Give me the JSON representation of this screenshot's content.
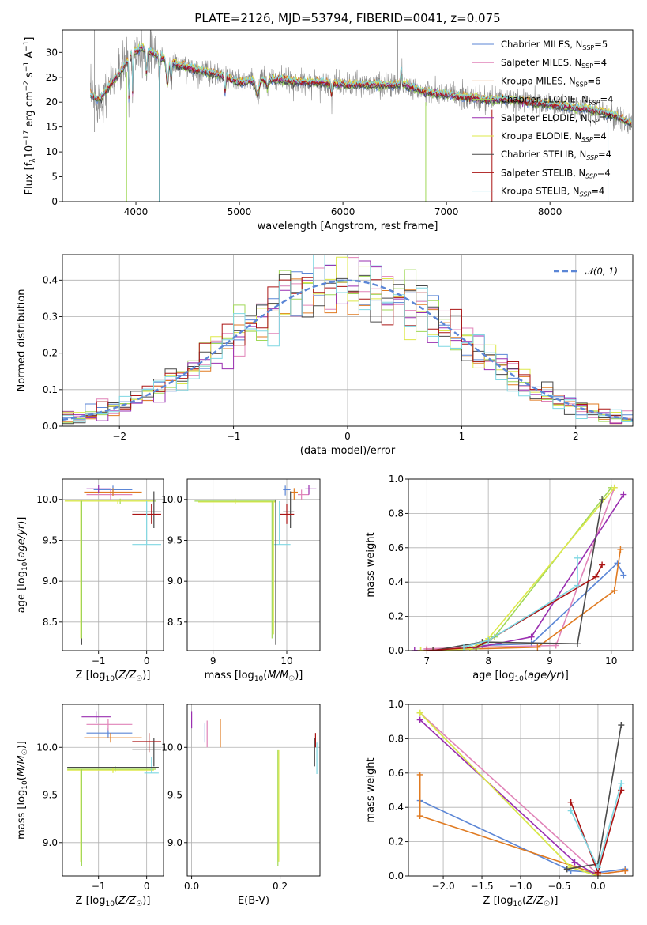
{
  "colors": {
    "Chabrier MILES": "#5b86d6",
    "Salpeter MILES": "#e083b8",
    "Kroupa MILES": "#e07b22",
    "Chabrier ELODIE": "#a0d858",
    "Salpeter ELODIE": "#9a2fb0",
    "Kroupa ELODIE": "#dde84a",
    "Chabrier STELIB": "#4a4a4a",
    "Salpeter STELIB": "#aa1414",
    "Kroupa STELIB": "#7fd7e2",
    "data": "#8a8a8a",
    "gauss": "#5b86d6"
  },
  "chart_data": [
    {
      "id": "spectrum",
      "type": "line",
      "title": "PLATE=2126, MJD=53794, FIBERID=0041, z=0.075",
      "xlabel": "wavelength [Angstrom, rest frame]",
      "ylabel": "Flux [f_λ10^-17 erg cm^-2 s^-1 A^-1]",
      "xlim": [
        3290,
        8800
      ],
      "ylim": [
        0,
        34.5
      ],
      "xticks": [
        4000,
        5000,
        6000,
        7000,
        8000
      ],
      "yticks": [
        0,
        5,
        10,
        15,
        20,
        25,
        30
      ],
      "grid": false,
      "legend_position": "top-right",
      "legend": [
        {
          "name": "Chabrier MILES",
          "nssp": "5"
        },
        {
          "name": "Salpeter MILES",
          "nssp": "4"
        },
        {
          "name": "Kroupa MILES",
          "nssp": "6"
        },
        {
          "name": "Chabrier ELODIE",
          "nssp": "4"
        },
        {
          "name": "Salpeter ELODIE",
          "nssp": "4"
        },
        {
          "name": "Kroupa ELODIE",
          "nssp": "4"
        },
        {
          "name": "Chabrier STELIB",
          "nssp": "4"
        },
        {
          "name": "Salpeter STELIB",
          "nssp": "4"
        },
        {
          "name": "Kroupa STELIB",
          "nssp": "4"
        }
      ],
      "continuum": {
        "x": [
          3560,
          3650,
          3750,
          3850,
          3950,
          4050,
          4150,
          4250,
          4400,
          4600,
          4800,
          5000,
          5200,
          5400,
          5600,
          5800,
          6000,
          6200,
          6400,
          6600,
          6800,
          7000,
          7200,
          7400,
          7600,
          7800,
          8000,
          8200,
          8400,
          8600,
          8800
        ],
        "y": [
          21.5,
          20.5,
          23.5,
          26,
          29.5,
          31,
          30,
          29,
          27.5,
          26.5,
          25.5,
          24,
          24.5,
          24.5,
          24,
          24,
          23.5,
          23.5,
          23.5,
          23.5,
          22,
          21.5,
          21,
          20.5,
          20.5,
          20,
          19.5,
          19,
          18.5,
          17.5,
          15.5
        ]
      }
    },
    {
      "id": "residuals",
      "type": "line",
      "xlabel": "(data-model)/error",
      "ylabel": "Normed distribution",
      "xlim": [
        -2.5,
        2.5
      ],
      "ylim": [
        0,
        0.47
      ],
      "xticks": [
        -2,
        -1,
        0,
        1,
        2
      ],
      "yticks": [
        0.0,
        0.1,
        0.2,
        0.3,
        0.4
      ],
      "grid": true,
      "legend_position": "top-right",
      "legend": [
        {
          "name": "𝒩(0, 1)"
        }
      ],
      "bins": 50,
      "bin_width": 0.1
    },
    {
      "id": "age_vs_Z",
      "type": "scatter",
      "xlabel": "Z [log10(Z/Z☉)]",
      "ylabel": "age  [log10(age/yr)]",
      "xlim": [
        -1.75,
        0.35
      ],
      "ylim": [
        8.15,
        10.25
      ],
      "xticks": [
        -1,
        0
      ],
      "yticks": [
        8.5,
        9.0,
        9.5,
        10.0
      ],
      "grid": true,
      "points": [
        {
          "s": "Chabrier MILES",
          "x": -0.7,
          "xe": [
            -1.1,
            -0.3
          ],
          "y": 10.12,
          "ye": [
            10.05,
            10.17
          ]
        },
        {
          "s": "Salpeter MILES",
          "x": -0.75,
          "xe": [
            -1.25,
            -0.3
          ],
          "y": 10.06,
          "ye": [
            10.0,
            10.12
          ]
        },
        {
          "s": "Kroupa MILES",
          "x": -0.7,
          "xe": [
            -1.3,
            -0.1
          ],
          "y": 10.09,
          "ye": [
            10.04,
            10.14
          ]
        },
        {
          "s": "Chabrier ELODIE",
          "x": -0.55,
          "xe": [
            -1.7,
            0.2
          ],
          "y": 9.98,
          "ye": [
            9.95,
            10.01
          ]
        },
        {
          "s": "Salpeter ELODIE",
          "x": -1.0,
          "xe": [
            -1.25,
            -0.75
          ],
          "y": 10.13,
          "ye": [
            10.08,
            10.18
          ]
        },
        {
          "s": "Kroupa ELODIE",
          "x": -0.6,
          "xe": [
            -1.7,
            0.15
          ],
          "y": 9.98,
          "ye": [
            9.95,
            10.0
          ]
        },
        {
          "s": "Chabrier STELIB",
          "x": 0.15,
          "xe": [
            -0.3,
            0.3
          ],
          "y": 9.85,
          "ye": [
            9.65,
            10.1
          ]
        },
        {
          "s": "Salpeter STELIB",
          "x": 0.1,
          "xe": [
            -0.3,
            0.3
          ],
          "y": 9.82,
          "ye": [
            9.7,
            9.95
          ]
        },
        {
          "s": "Kroupa STELIB",
          "x": 0.0,
          "xe": [
            -0.3,
            0.3
          ],
          "y": 9.45,
          "ye": [
            9.45,
            9.98
          ]
        },
        {
          "s": "Chabrier STELIB",
          "x": -1.35,
          "xe": [
            -1.35,
            -1.35
          ],
          "y": 9.0,
          "ye": [
            8.22,
            9.98
          ]
        },
        {
          "s": "Chabrier ELODIE",
          "x": -1.35,
          "xe": [
            -1.35,
            -1.35
          ],
          "y": 9.0,
          "ye": [
            8.3,
            9.98
          ]
        },
        {
          "s": "Kroupa ELODIE",
          "x": -1.37,
          "xe": [
            -1.37,
            -1.37
          ],
          "y": 9.0,
          "ye": [
            8.3,
            9.98
          ]
        }
      ]
    },
    {
      "id": "age_vs_mass",
      "type": "scatter",
      "xlabel": "mass [log10(M/M☉)]",
      "ylabel": "",
      "xlim": [
        8.65,
        10.45
      ],
      "ylim": [
        8.15,
        10.25
      ],
      "xticks": [
        9,
        10
      ],
      "yticks": [
        8.5,
        9.0,
        9.5,
        10.0
      ],
      "grid": true,
      "points": [
        {
          "s": "Chabrier MILES",
          "x": 9.98,
          "xe": [
            9.95,
            10.05
          ],
          "y": 10.12,
          "ye": [
            10.05,
            10.17
          ]
        },
        {
          "s": "Salpeter MILES",
          "x": 10.2,
          "xe": [
            10.15,
            10.3
          ],
          "y": 10.06,
          "ye": [
            10.0,
            10.12
          ]
        },
        {
          "s": "Kroupa MILES",
          "x": 10.1,
          "xe": [
            10.05,
            10.15
          ],
          "y": 10.09,
          "ye": [
            10.0,
            10.14
          ]
        },
        {
          "s": "Chabrier ELODIE",
          "x": 9.3,
          "xe": [
            8.75,
            9.85
          ],
          "y": 9.98,
          "ye": [
            9.95,
            10.01
          ]
        },
        {
          "s": "Salpeter ELODIE",
          "x": 10.3,
          "xe": [
            10.25,
            10.4
          ],
          "y": 10.13,
          "ye": [
            10.06,
            10.18
          ]
        },
        {
          "s": "Kroupa ELODIE",
          "x": 9.3,
          "xe": [
            8.8,
            9.85
          ],
          "y": 9.97,
          "ye": [
            9.94,
            10.0
          ]
        },
        {
          "s": "Chabrier STELIB",
          "x": 10.05,
          "xe": [
            9.95,
            10.1
          ],
          "y": 9.85,
          "ye": [
            9.65,
            10.1
          ]
        },
        {
          "s": "Salpeter STELIB",
          "x": 10.0,
          "xe": [
            9.9,
            10.1
          ],
          "y": 9.82,
          "ye": [
            9.7,
            9.95
          ]
        },
        {
          "s": "Kroupa STELIB",
          "x": 9.9,
          "xe": [
            9.8,
            10.05
          ],
          "y": 9.45,
          "ye": [
            9.45,
            9.98
          ]
        },
        {
          "s": "Chabrier STELIB",
          "x": 9.85,
          "xe": [
            9.85,
            9.85
          ],
          "y": 9.1,
          "ye": [
            8.22,
            10.0
          ]
        },
        {
          "s": "Chabrier ELODIE",
          "x": 9.8,
          "xe": [
            9.8,
            9.8
          ],
          "y": 9.1,
          "ye": [
            8.3,
            9.98
          ]
        },
        {
          "s": "Kroupa ELODIE",
          "x": 9.82,
          "xe": [
            9.82,
            9.82
          ],
          "y": 9.1,
          "ye": [
            8.35,
            9.98
          ]
        }
      ]
    },
    {
      "id": "weight_vs_age",
      "type": "line",
      "xlabel": "age  [log10(age/yr)]",
      "ylabel": "mass weight",
      "xlim": [
        6.7,
        10.35
      ],
      "ylim": [
        0,
        1.0
      ],
      "xticks": [
        7,
        8,
        9,
        10
      ],
      "yticks": [
        0.0,
        0.2,
        0.4,
        0.6,
        0.8,
        1.0
      ],
      "grid": true,
      "series": [
        {
          "name": "Chabrier MILES",
          "x": [
            7.5,
            7.9,
            8.7,
            10.1,
            10.2
          ],
          "y": [
            0.01,
            0.03,
            0.04,
            0.51,
            0.44
          ]
        },
        {
          "name": "Salpeter MILES",
          "x": [
            7.0,
            7.8,
            9.1,
            10.05
          ],
          "y": [
            0.01,
            0.02,
            0.03,
            0.95
          ]
        },
        {
          "name": "Kroupa MILES",
          "x": [
            7.1,
            7.8,
            8.8,
            10.05,
            10.15
          ],
          "y": [
            0.0,
            0.01,
            0.02,
            0.35,
            0.59
          ]
        },
        {
          "name": "Chabrier ELODIE",
          "x": [
            6.9,
            7.8,
            8.1,
            10.0
          ],
          "y": [
            0.0,
            0.01,
            0.08,
            0.95
          ]
        },
        {
          "name": "Salpeter ELODIE",
          "x": [
            6.8,
            7.7,
            8.7,
            10.2
          ],
          "y": [
            0.0,
            0.01,
            0.08,
            0.91
          ]
        },
        {
          "name": "Kroupa ELODIE",
          "x": [
            6.9,
            7.7,
            8.0,
            10.05
          ],
          "y": [
            0.0,
            0.01,
            0.07,
            0.95
          ]
        },
        {
          "name": "Chabrier STELIB",
          "x": [
            7.1,
            7.9,
            9.45,
            9.85
          ],
          "y": [
            0.0,
            0.05,
            0.04,
            0.88
          ]
        },
        {
          "name": "Salpeter STELIB",
          "x": [
            7.0,
            7.8,
            8.0,
            9.75,
            9.85
          ],
          "y": [
            0.0,
            0.02,
            0.06,
            0.43,
            0.5
          ]
        },
        {
          "name": "Kroupa STELIB",
          "x": [
            7.6,
            7.8,
            8.0,
            9.45,
            9.45
          ],
          "y": [
            0.02,
            0.04,
            0.06,
            0.38,
            0.54
          ]
        }
      ]
    },
    {
      "id": "mass_vs_Z",
      "type": "scatter",
      "xlabel": "Z [log10(Z/Z☉)]",
      "ylabel": "mass [log10(M/M☉)]",
      "xlim": [
        -1.75,
        0.35
      ],
      "ylim": [
        8.65,
        10.45
      ],
      "xticks": [
        -1,
        0
      ],
      "yticks": [
        9.0,
        9.5,
        10.0
      ],
      "grid": true,
      "points": [
        {
          "s": "Chabrier MILES",
          "x": -0.8,
          "xe": [
            -1.25,
            -0.3
          ],
          "y": 10.15,
          "ye": [
            10.1,
            10.2
          ]
        },
        {
          "s": "Salpeter MILES",
          "x": -0.8,
          "xe": [
            -1.25,
            -0.3
          ],
          "y": 10.24,
          "ye": [
            10.18,
            10.3
          ]
        },
        {
          "s": "Kroupa MILES",
          "x": -0.75,
          "xe": [
            -1.3,
            -0.1
          ],
          "y": 10.1,
          "ye": [
            10.05,
            10.15
          ]
        },
        {
          "s": "Chabrier ELODIE",
          "x": -0.65,
          "xe": [
            -1.65,
            0.2
          ],
          "y": 9.77,
          "ye": [
            9.75,
            9.8
          ]
        },
        {
          "s": "Salpeter ELODIE",
          "x": -1.05,
          "xe": [
            -1.35,
            -0.75
          ],
          "y": 10.32,
          "ye": [
            10.25,
            10.38
          ]
        },
        {
          "s": "Kroupa ELODIE",
          "x": -0.7,
          "xe": [
            -1.65,
            0.15
          ],
          "y": 9.76,
          "ye": [
            9.73,
            9.79
          ]
        },
        {
          "s": "Chabrier STELIB",
          "x": 0.15,
          "xe": [
            -0.3,
            0.3
          ],
          "y": 9.98,
          "ye": [
            9.8,
            10.1
          ]
        },
        {
          "s": "Salpeter STELIB",
          "x": 0.05,
          "xe": [
            -0.3,
            0.3
          ],
          "y": 10.06,
          "ye": [
            9.95,
            10.15
          ]
        },
        {
          "s": "Kroupa STELIB",
          "x": 0.1,
          "xe": [
            -0.05,
            0.25
          ],
          "y": 9.73,
          "ye": [
            9.73,
            9.9
          ]
        },
        {
          "s": "Chabrier STELIB",
          "x": -0.7,
          "xe": [
            -1.65,
            0.25
          ],
          "y": 9.79,
          "ye": [
            9.79,
            9.79
          ]
        },
        {
          "s": "Chabrier ELODIE",
          "x": -1.35,
          "xe": [
            -1.35,
            -1.35
          ],
          "y": 9.2,
          "ye": [
            8.75,
            9.77
          ]
        },
        {
          "s": "Kroupa ELODIE",
          "x": -1.37,
          "xe": [
            -1.37,
            -1.37
          ],
          "y": 9.2,
          "ye": [
            8.8,
            9.77
          ]
        }
      ]
    },
    {
      "id": "mass_vs_EBV",
      "type": "scatter",
      "xlabel": "E(B-V)",
      "ylabel": "",
      "xlim": [
        -0.01,
        0.29
      ],
      "ylim": [
        8.65,
        10.45
      ],
      "xticks": [
        0.0,
        0.2
      ],
      "yticks": [
        9.0,
        9.5,
        10.0
      ],
      "grid": true,
      "points": [
        {
          "s": "Chabrier MILES",
          "x": 0.03,
          "ye": [
            10.05,
            10.25
          ]
        },
        {
          "s": "Salpeter MILES",
          "x": 0.035,
          "ye": [
            10.0,
            10.28
          ]
        },
        {
          "s": "Kroupa MILES",
          "x": 0.065,
          "ye": [
            10.0,
            10.3
          ]
        },
        {
          "s": "Salpeter ELODIE",
          "x": 0.0,
          "ye": [
            10.2,
            10.38
          ]
        },
        {
          "s": "Chabrier ELODIE",
          "x": 0.195,
          "ye": [
            8.75,
            9.97
          ]
        },
        {
          "s": "Kroupa ELODIE",
          "x": 0.197,
          "ye": [
            8.8,
            9.97
          ]
        },
        {
          "s": "Chabrier STELIB",
          "x": 0.278,
          "ye": [
            9.8,
            10.1
          ]
        },
        {
          "s": "Salpeter STELIB",
          "x": 0.28,
          "ye": [
            10.0,
            10.15
          ]
        },
        {
          "s": "Kroupa STELIB",
          "x": 0.283,
          "ye": [
            9.72,
            10.05
          ]
        }
      ]
    },
    {
      "id": "weight_vs_Z",
      "type": "line",
      "xlabel": "Z [log10(Z/Z☉)]",
      "ylabel": "mass weight",
      "xlim": [
        -2.45,
        0.45
      ],
      "ylim": [
        0,
        1.0
      ],
      "xticks": [
        -2.0,
        -1.5,
        -1.0,
        -0.5,
        0.0
      ],
      "yticks": [
        0.0,
        0.2,
        0.4,
        0.6,
        0.8,
        1.0
      ],
      "grid": true,
      "series": [
        {
          "name": "Chabrier MILES",
          "x": [
            -2.3,
            -0.35,
            0.0,
            0.35
          ],
          "y": [
            0.44,
            0.03,
            0.02,
            0.04
          ]
        },
        {
          "name": "Salpeter MILES",
          "x": [
            -2.3,
            0.0,
            0.35
          ],
          "y": [
            0.95,
            0.01,
            0.03
          ]
        },
        {
          "name": "Kroupa MILES",
          "x": [
            -2.3,
            -2.3,
            0.0,
            0.35
          ],
          "y": [
            0.59,
            0.35,
            0.01,
            0.03
          ]
        },
        {
          "name": "Chabrier ELODIE",
          "x": [
            -2.3,
            -0.35,
            0.0
          ],
          "y": [
            0.95,
            0.05,
            0.0
          ]
        },
        {
          "name": "Salpeter ELODIE",
          "x": [
            -2.3,
            -0.3,
            0.0
          ],
          "y": [
            0.91,
            0.08,
            0.0
          ]
        },
        {
          "name": "Kroupa ELODIE",
          "x": [
            -2.3,
            -0.35,
            0.0
          ],
          "y": [
            0.95,
            0.05,
            0.0
          ]
        },
        {
          "name": "Chabrier STELIB",
          "x": [
            -0.4,
            0.0,
            0.3
          ],
          "y": [
            0.04,
            0.07,
            0.88
          ]
        },
        {
          "name": "Salpeter STELIB",
          "x": [
            -0.35,
            0.0,
            0.3
          ],
          "y": [
            0.43,
            0.02,
            0.5
          ]
        },
        {
          "name": "Kroupa STELIB",
          "x": [
            -0.35,
            0.0,
            0.3
          ],
          "y": [
            0.38,
            0.05,
            0.54
          ]
        }
      ]
    }
  ]
}
